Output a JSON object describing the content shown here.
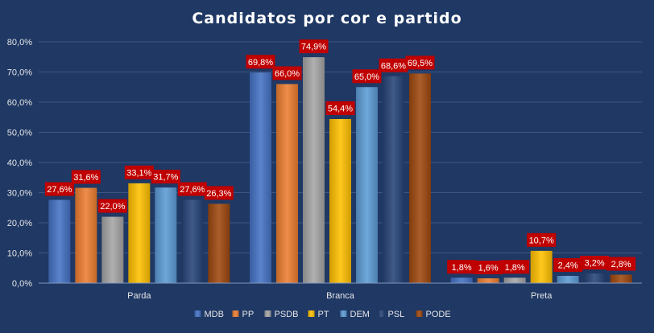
{
  "chart_data": {
    "type": "bar",
    "title": "Candidatos  por  cor  e  partido",
    "categories": [
      "Parda",
      "Branca",
      "Preta"
    ],
    "series": [
      {
        "name": "MDB",
        "values": [
          27.6,
          69.8,
          1.8
        ],
        "labels": [
          "27,6%",
          "69,8%",
          "1,8%"
        ],
        "color": "#4472c4"
      },
      {
        "name": "PP",
        "values": [
          31.6,
          66.0,
          1.6
        ],
        "labels": [
          "31,6%",
          "66,0%",
          "1,6%"
        ],
        "color": "#ed7d31"
      },
      {
        "name": "PSDB",
        "values": [
          22.0,
          74.9,
          1.8
        ],
        "labels": [
          "22,0%",
          "74,9%",
          "1,8%"
        ],
        "color": "#a5a5a5"
      },
      {
        "name": "PT",
        "values": [
          33.1,
          54.4,
          10.7
        ],
        "labels": [
          "33,1%",
          "54,4%",
          "10,7%"
        ],
        "color": "#ffc000"
      },
      {
        "name": "DEM",
        "values": [
          31.7,
          65.0,
          2.4
        ],
        "labels": [
          "31,7%",
          "65,0%",
          "2,4%"
        ],
        "color": "#5b9bd5"
      },
      {
        "name": "PSL",
        "values": [
          27.6,
          68.6,
          3.2
        ],
        "labels": [
          "27,6%",
          "68,6%",
          "3,2%"
        ],
        "color": "#264478"
      },
      {
        "name": "PODE",
        "values": [
          26.3,
          69.5,
          2.8
        ],
        "labels": [
          "26,3%",
          "69,5%",
          "2,8%"
        ],
        "color": "#9e480e"
      }
    ],
    "y_ticks": [
      "0,0%",
      "10,0%",
      "20,0%",
      "30,0%",
      "40,0%",
      "50,0%",
      "60,0%",
      "70,0%",
      "80,0%"
    ],
    "ylim": [
      0,
      80
    ],
    "grid": true,
    "legend_position": "bottom",
    "label_background": "#c00000"
  }
}
